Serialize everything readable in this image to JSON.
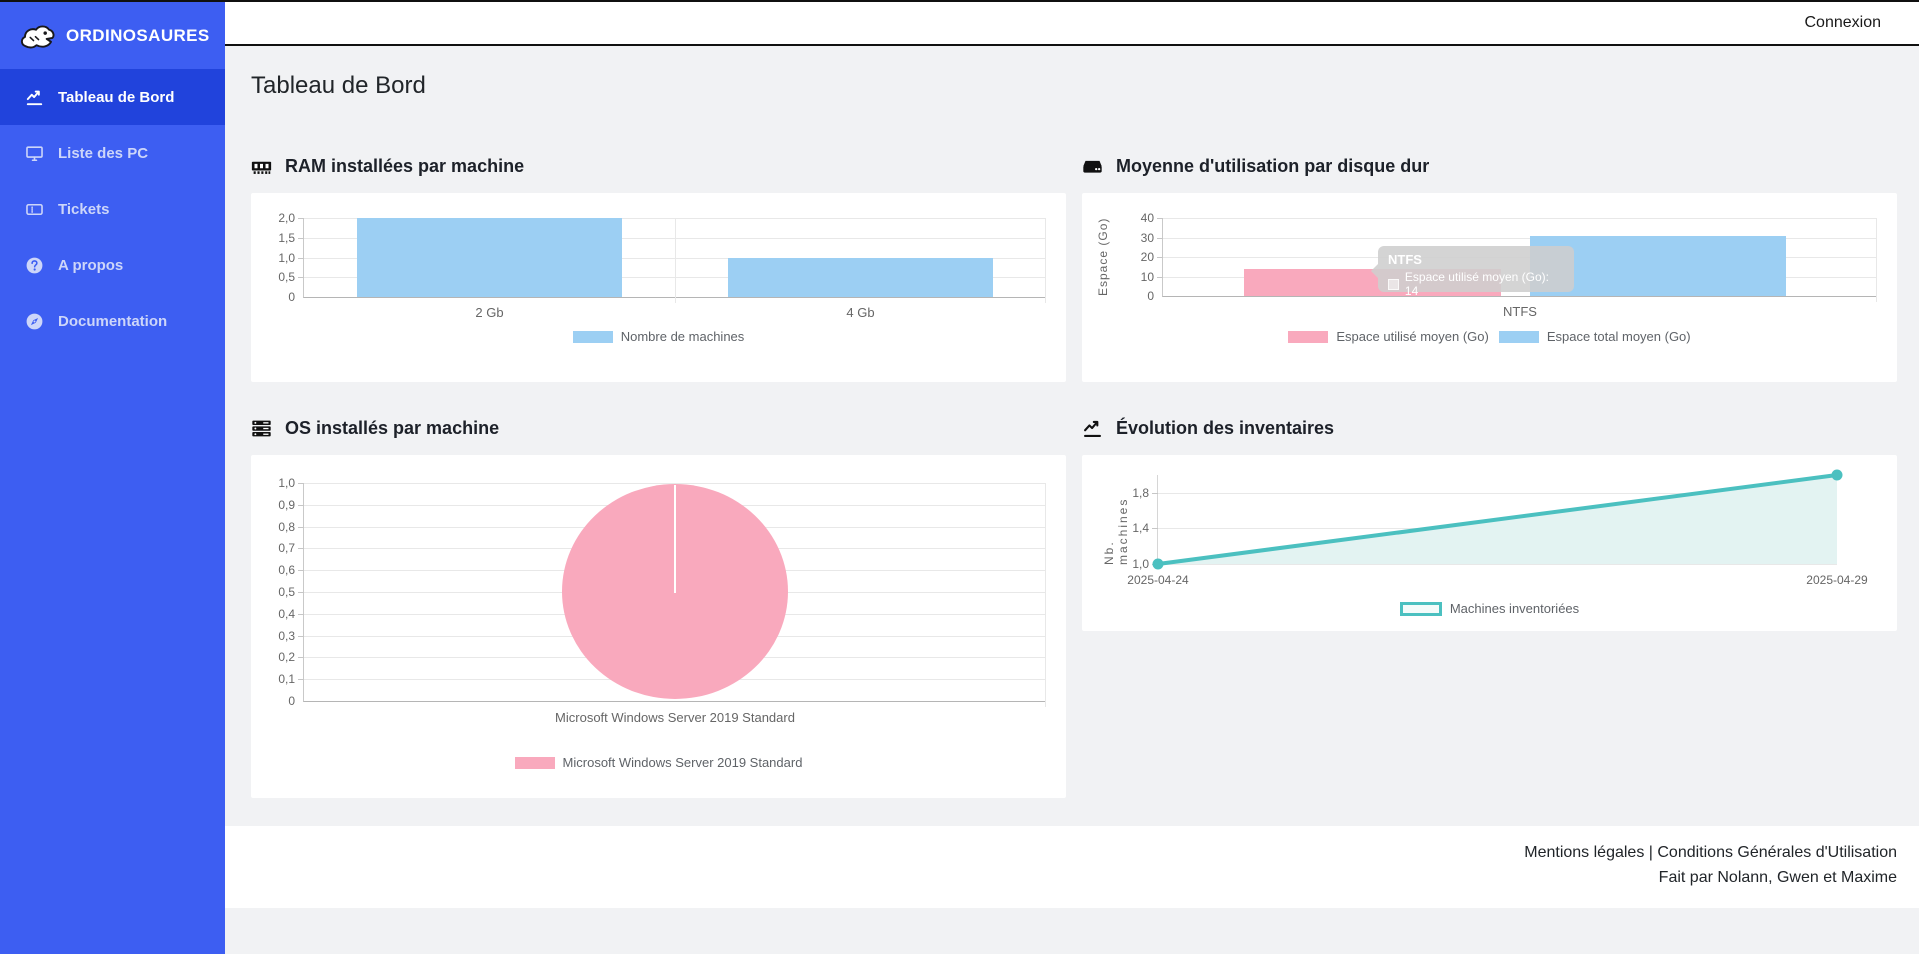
{
  "theme": {
    "sidebar_bg": "#3d5ef2",
    "sidebar_active_bg": "#2143dc",
    "sidebar_inactive_text": "#cdd6f9",
    "page_bg": "#f1f2f4",
    "topbar_border": "#101010"
  },
  "header": {
    "connexion_label": "Connexion"
  },
  "sidebar": {
    "logo_text": "ORDINOSAURES",
    "logo_icon": "dinosaur-icon",
    "items": [
      {
        "label": "Tableau de Bord",
        "icon": "chart-line-icon",
        "active": true
      },
      {
        "label": "Liste des PC",
        "icon": "desktop-icon",
        "active": false
      },
      {
        "label": "Tickets",
        "icon": "ticket-icon",
        "active": false
      },
      {
        "label": "A propos",
        "icon": "circle-question-icon",
        "active": false
      },
      {
        "label": "Documentation",
        "icon": "compass-icon",
        "active": false
      }
    ]
  },
  "page": {
    "title": "Tableau de Bord"
  },
  "chart_data": [
    {
      "type": "bar",
      "title": "RAM installées par machine",
      "icon": "memory-icon",
      "categories": [
        "2 Gb",
        "4 Gb"
      ],
      "series": [
        {
          "name": "Nombre de machines",
          "color": "#9ccff3",
          "values": [
            2,
            1
          ]
        }
      ],
      "ylim": [
        0,
        2
      ],
      "ytick_labels": [
        "2,0",
        "1,5",
        "1,0",
        "0,5",
        "0"
      ],
      "grid": true,
      "legend_position": "bottom"
    },
    {
      "type": "bar",
      "title": "Moyenne d'utilisation par disque dur",
      "icon": "hdd-icon",
      "categories": [
        "NTFS"
      ],
      "ylabel": "Espace (Go)",
      "series": [
        {
          "name": "Espace utilisé moyen (Go)",
          "color": "#f9a9bd",
          "values": [
            14
          ]
        },
        {
          "name": "Espace total moyen (Go)",
          "color": "#9ccff3",
          "values": [
            31
          ]
        }
      ],
      "ylim": [
        0,
        40
      ],
      "ytick_labels": [
        "40",
        "30",
        "20",
        "10",
        "0"
      ],
      "tooltip": {
        "title": "NTFS",
        "text": "Espace utilisé moyen (Go): 14"
      },
      "grid": true,
      "legend_position": "bottom"
    },
    {
      "type": "pie",
      "title": "OS installés par machine",
      "icon": "server-icon",
      "labels": [
        "Microsoft Windows Server 2019 Standard"
      ],
      "values": [
        1
      ],
      "colors": [
        "#f9a9bd"
      ],
      "axis_tick_labels": [
        "1,0",
        "0,9",
        "0,8",
        "0,7",
        "0,6",
        "0,5",
        "0,4",
        "0,3",
        "0,2",
        "0,1",
        "0"
      ],
      "xlabel": "Microsoft Windows Server 2019 Standard",
      "legend_position": "bottom"
    },
    {
      "type": "line",
      "title": "Évolution des inventaires",
      "icon": "chart-line-icon",
      "x": [
        "2025-04-24",
        "2025-04-29"
      ],
      "ylabel": "Nb. machines",
      "series": [
        {
          "name": "Machines inventoriées",
          "color": "#4bc0c0",
          "fill": "#e3f3f2",
          "values": [
            1,
            2
          ]
        }
      ],
      "ylim": [
        1,
        2
      ],
      "ytick_labels": [
        "1,8",
        "1,4",
        "1,0"
      ],
      "grid": true,
      "legend_position": "bottom"
    }
  ],
  "footer": {
    "links": [
      "Mentions légales",
      "Conditions Générales d'Utilisation"
    ],
    "separator": " | ",
    "credit": "Fait par Nolann, Gwen et Maxime"
  }
}
